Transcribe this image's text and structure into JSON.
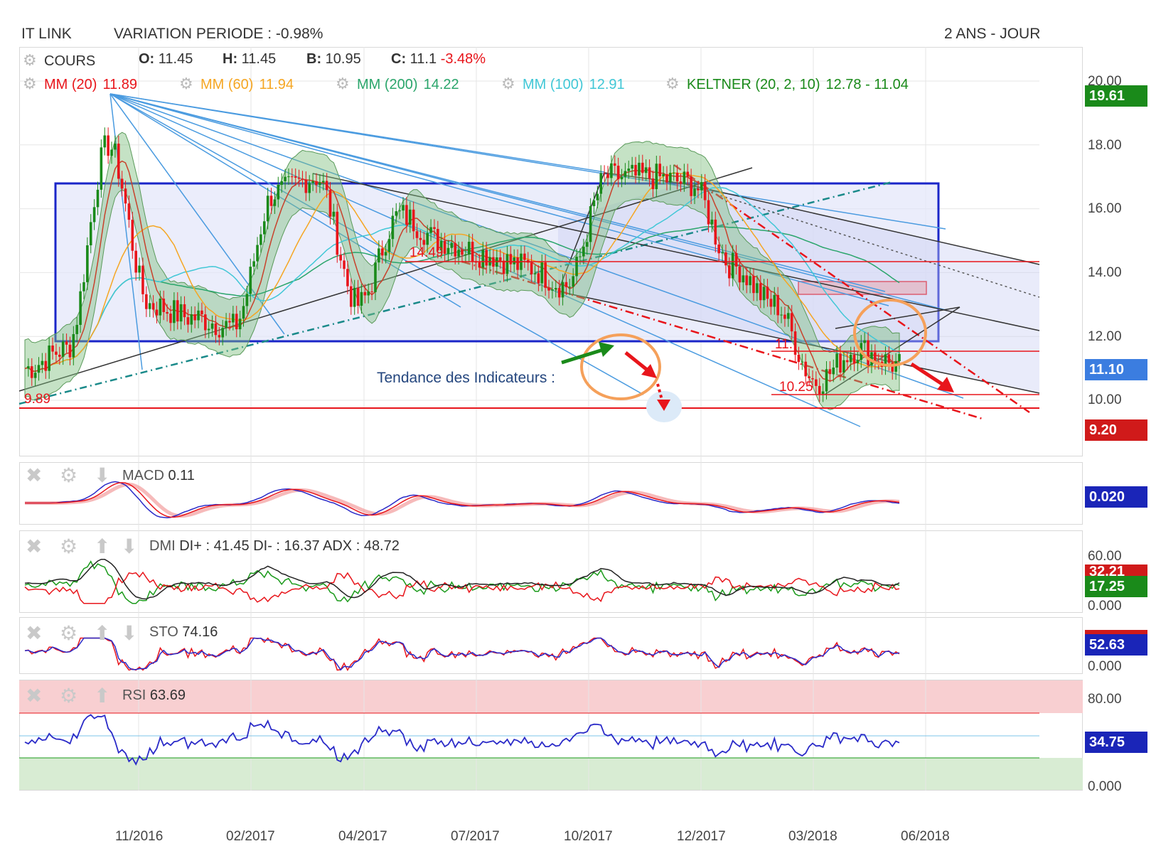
{
  "header": {
    "title": "IT LINK",
    "variation": "VARIATION PERIODE : -0.98%",
    "range": "2 ANS - JOUR"
  },
  "legend": {
    "cours_label": "COURS",
    "o_label": "O:",
    "o_value": "11.45",
    "h_label": "H:",
    "h_value": "11.45",
    "b_label": "B:",
    "b_value": "10.95",
    "c_label": "C:",
    "c_value": "11.1",
    "c_change": "-3.48%",
    "mm20_label": "MM (20)",
    "mm20_value": "11.89",
    "mm60_label": "MM (60)",
    "mm60_value": "11.94",
    "mm200_label": "MM (200)",
    "mm200_value": "14.22",
    "mm100_label": "MM (100)",
    "mm100_value": "12.91",
    "keltner_label": "KELTNER (20, 2, 10)",
    "keltner_value": "12.78 - 11.04"
  },
  "colors": {
    "mm20": "#e8151b",
    "mm60": "#f5a623",
    "mm200": "#2aa56b",
    "mm100": "#41c7d6",
    "keltner": "#1a8a1a",
    "down": "#e8151b",
    "up": "#1a8a1a",
    "box": "#1a25c8",
    "fan": "#4a9be0"
  },
  "annotations": {
    "trend_text": "Tendance des Indicateurs :",
    "level_1449": "14.49",
    "level_1025": "10.25",
    "level_989": "9.89",
    "level_11": "11."
  },
  "price_axis": {
    "ticks": [
      "20.00",
      "18.00",
      "16.00",
      "14.00",
      "12.00",
      "10.00"
    ],
    "badge_high": "19.61",
    "badge_last": "11.10",
    "badge_low": "9.20"
  },
  "macd": {
    "label": "MACD",
    "value": "0.11",
    "badge": "0.020"
  },
  "dmi": {
    "label": "DMI",
    "text": "DI+ : 41.45 DI- : 16.37 ADX : 48.72",
    "ticks": [
      "60.00",
      "0.000"
    ],
    "badge_red": "32.21",
    "badge_green": "17.25"
  },
  "sto": {
    "label": "STO",
    "value": "74.16",
    "ticks": [
      "0.000"
    ],
    "badge": "52.63"
  },
  "rsi": {
    "label": "RSI",
    "value": "63.69",
    "ticks": [
      "80.00",
      "0.000"
    ],
    "badge": "34.75"
  },
  "x_axis": {
    "labels": [
      "11/2016",
      "02/2017",
      "04/2017",
      "07/2017",
      "10/2017",
      "12/2017",
      "03/2018",
      "06/2018"
    ]
  },
  "chart_data": {
    "type": "line",
    "title": "IT LINK",
    "x": [
      "2016-08",
      "2016-09",
      "2016-10",
      "2016-11",
      "2016-12",
      "2017-01",
      "2017-02",
      "2017-03",
      "2017-04",
      "2017-05",
      "2017-06",
      "2017-07",
      "2017-08",
      "2017-09",
      "2017-10",
      "2017-11",
      "2017-12",
      "2018-01",
      "2018-02",
      "2018-03",
      "2018-04",
      "2018-05"
    ],
    "series": [
      {
        "name": "COURS",
        "values": [
          11.0,
          11.6,
          18.0,
          13.0,
          12.6,
          12.3,
          16.5,
          17.0,
          13.0,
          15.8,
          15.0,
          14.6,
          14.2,
          13.6,
          17.0,
          17.0,
          16.8,
          14.2,
          13.0,
          10.6,
          11.6,
          11.1
        ]
      }
    ],
    "ylim": [
      9.0,
      20.0
    ],
    "levels": [
      14.49,
      10.25,
      9.89
    ]
  }
}
